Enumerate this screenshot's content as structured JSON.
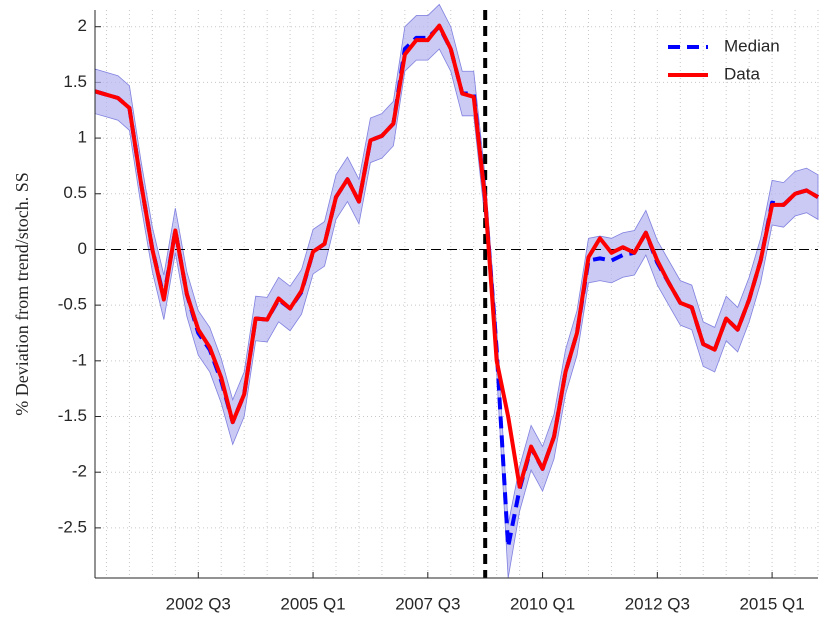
{
  "chart_data": {
    "type": "line",
    "ylabel": "% Deviation from trend/stoch. SS",
    "categories": [
      null,
      null,
      null,
      null,
      null,
      null,
      null,
      null,
      null,
      "2002 Q3",
      null,
      null,
      null,
      null,
      null,
      null,
      null,
      null,
      null,
      "2005 Q1",
      null,
      null,
      null,
      null,
      null,
      null,
      null,
      null,
      null,
      "2007 Q3",
      null,
      null,
      null,
      null,
      null,
      null,
      null,
      null,
      null,
      "2010 Q1",
      null,
      null,
      null,
      null,
      null,
      null,
      null,
      null,
      null,
      "2012 Q3",
      null,
      null,
      null,
      null,
      null,
      null,
      null,
      null,
      null,
      "2015 Q1",
      null,
      null,
      null,
      null
    ],
    "series": [
      {
        "name": "Median",
        "color": "#0000ff",
        "dashed": true,
        "values": [
          1.42,
          1.39,
          1.36,
          1.27,
          0.6,
          0.0,
          -0.43,
          0.17,
          -0.4,
          -0.75,
          -0.9,
          -1.18,
          -1.55,
          -1.3,
          -0.62,
          -0.63,
          -0.45,
          -0.53,
          -0.38,
          -0.02,
          0.05,
          0.47,
          0.63,
          0.43,
          0.98,
          1.02,
          1.13,
          1.8,
          1.9,
          1.9,
          2.0,
          1.8,
          1.4,
          1.4,
          0.45,
          -0.9,
          -2.67,
          -2.15,
          -1.78,
          -1.97,
          -1.68,
          -1.1,
          -0.75,
          -0.1,
          -0.08,
          -0.1,
          -0.05,
          -0.03,
          0.15,
          -0.12,
          -0.3,
          -0.48,
          -0.52,
          -0.85,
          -0.9,
          -0.62,
          -0.72,
          -0.45,
          -0.1,
          0.42,
          0.4,
          0.5,
          0.53,
          0.47
        ]
      },
      {
        "name": "Data",
        "color": "#ff0000",
        "dashed": false,
        "values": [
          1.42,
          1.39,
          1.36,
          1.27,
          0.6,
          0.0,
          -0.45,
          0.17,
          -0.4,
          -0.72,
          -0.88,
          -1.15,
          -1.55,
          -1.3,
          -0.62,
          -0.63,
          -0.44,
          -0.53,
          -0.37,
          -0.02,
          0.05,
          0.47,
          0.63,
          0.43,
          0.98,
          1.02,
          1.13,
          1.75,
          1.88,
          1.88,
          2.01,
          1.8,
          1.4,
          1.37,
          0.45,
          -1.0,
          -1.5,
          -2.13,
          -1.77,
          -1.97,
          -1.68,
          -1.1,
          -0.75,
          -0.07,
          0.1,
          -0.03,
          0.02,
          -0.03,
          0.15,
          -0.1,
          -0.3,
          -0.48,
          -0.52,
          -0.85,
          -0.9,
          -0.62,
          -0.72,
          -0.45,
          -0.1,
          0.4,
          0.4,
          0.5,
          0.53,
          0.47
        ]
      }
    ],
    "band": {
      "color": "#b4b4f0",
      "upper": [
        1.62,
        1.59,
        1.56,
        1.47,
        0.8,
        0.2,
        -0.23,
        0.37,
        -0.2,
        -0.55,
        -0.7,
        -0.98,
        -1.35,
        -1.1,
        -0.42,
        -0.43,
        -0.25,
        -0.33,
        -0.18,
        0.18,
        0.25,
        0.67,
        0.83,
        0.63,
        1.18,
        1.22,
        1.33,
        2.0,
        2.1,
        2.1,
        2.2,
        2.0,
        1.6,
        1.6,
        0.65,
        -0.7,
        -2.47,
        -1.95,
        -1.58,
        -1.77,
        -1.48,
        -0.9,
        -0.55,
        0.1,
        0.12,
        0.1,
        0.15,
        0.17,
        0.35,
        0.08,
        -0.1,
        -0.28,
        -0.32,
        -0.65,
        -0.7,
        -0.42,
        -0.52,
        -0.25,
        0.1,
        0.62,
        0.6,
        0.7,
        0.73,
        0.67
      ],
      "lower": [
        1.22,
        1.19,
        1.16,
        1.07,
        0.4,
        -0.2,
        -0.63,
        -0.03,
        -0.6,
        -0.95,
        -1.1,
        -1.38,
        -1.75,
        -1.5,
        -0.82,
        -0.83,
        -0.65,
        -0.73,
        -0.58,
        -0.22,
        -0.15,
        0.27,
        0.43,
        0.23,
        0.78,
        0.82,
        0.93,
        1.6,
        1.7,
        1.7,
        1.8,
        1.6,
        1.2,
        1.2,
        0.25,
        -1.1,
        -2.95,
        -2.35,
        -1.98,
        -2.17,
        -1.88,
        -1.3,
        -0.95,
        -0.3,
        -0.28,
        -0.3,
        -0.25,
        -0.23,
        -0.05,
        -0.32,
        -0.5,
        -0.68,
        -0.72,
        -1.05,
        -1.1,
        -0.82,
        -0.92,
        -0.65,
        -0.3,
        0.22,
        0.2,
        0.3,
        0.33,
        0.27
      ]
    },
    "ylim": [
      -2.95,
      2.15
    ],
    "yticks": [
      -2.5,
      -2,
      -1.5,
      -1,
      -0.5,
      0,
      0.5,
      1,
      1.5,
      2
    ],
    "hline": 0,
    "vline_index": 34,
    "grid": true,
    "legend": "upper right"
  }
}
